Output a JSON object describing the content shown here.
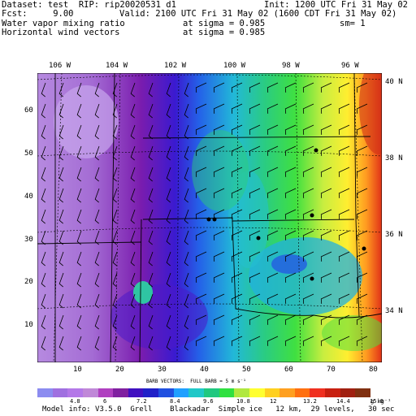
{
  "header": {
    "dataset": "Dataset: test  RIP: rip20020531 d1",
    "init": "Init: 1200 UTC Fri 31 May 02",
    "fcst": "Fcst:     9.00",
    "valid": "Valid: 2100 UTC Fri 31 May 02 (1600 CDT Fri 31 May 02)",
    "field1": "Water vapor mixing ratio",
    "field1_level": "at sigma = 0.985",
    "field1_smooth": "sm= 1",
    "field2": "Horizontal wind vectors",
    "field2_level": "at sigma = 0.985"
  },
  "axes": {
    "top_ticks": [
      "106 W",
      "104 W",
      "102 W",
      "100 W",
      "98 W",
      "96 W"
    ],
    "right_ticks": [
      "40 N",
      "38 N",
      "36 N",
      "34 N"
    ],
    "left_ticks": [
      "60",
      "50",
      "40",
      "30",
      "20",
      "10"
    ],
    "bottom_ticks": [
      "10",
      "20",
      "30",
      "40",
      "50",
      "60",
      "70",
      "80"
    ]
  },
  "barb_label": "BARB VECTORS:  FULL BARB = 5 m s⁻¹",
  "legend": {
    "colors": [
      "#8c8cf0",
      "#a070e0",
      "#b478e8",
      "#c088d8",
      "#b040c0",
      "#8020a0",
      "#4010c0",
      "#2020c8",
      "#2050e0",
      "#20a0ff",
      "#20c8c8",
      "#20c880",
      "#30e040",
      "#b0e840",
      "#ffff30",
      "#ffd020",
      "#ffa020",
      "#ff7010",
      "#f03020",
      "#c82010",
      "#a02010",
      "#803010"
    ],
    "labels": [
      "4.8",
      "6",
      "7.2",
      "8.4",
      "9.6",
      "10.8",
      "12",
      "13.2",
      "14.4",
      "15.6"
    ],
    "unit": "g kg⁻¹"
  },
  "footer": "Model info: V3.5.0  Grell    Blackadar  Simple ice   12 km,  29 levels,   30 sec"
}
